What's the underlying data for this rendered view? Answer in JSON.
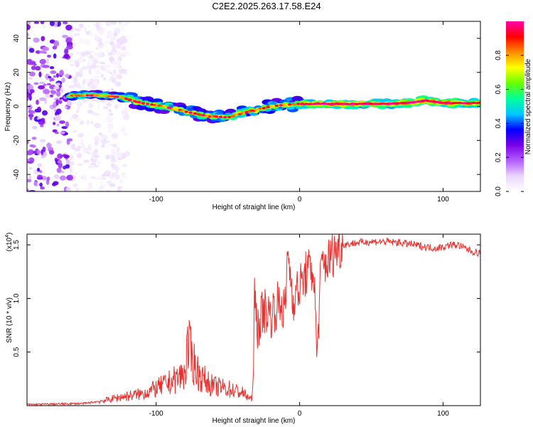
{
  "title": "C2E2.2025.263.17.58.E24",
  "colors": {
    "snr_line": "#e8322f",
    "colormap": [
      "#ffffff",
      "#ead5ff",
      "#b35cff",
      "#7a00e6",
      "#0000ff",
      "#00c8ff",
      "#00ff9a",
      "#66ff00",
      "#ffff00",
      "#ff8c00",
      "#ff0000",
      "#ff00aa"
    ]
  },
  "chart_data": [
    {
      "type": "heatmap",
      "title": "C2E2.2025.263.17.58.E24",
      "xlabel": "Height of straight line (km)",
      "ylabel": "Frequency (Hz)",
      "xlim": [
        -190,
        126
      ],
      "ylim": [
        -50,
        50
      ],
      "xticks": [
        -100,
        0,
        100
      ],
      "yticks": [
        -40,
        -20,
        0,
        20,
        40
      ],
      "colorbar": {
        "label": "Normalized spectral amplitude",
        "range": [
          0,
          1
        ],
        "ticks": [
          "0.0",
          "0.2",
          "0.4",
          "0.6",
          "0.8"
        ]
      },
      "ridge": {
        "x": [
          -160,
          -140,
          -125,
          -110,
          -95,
          -80,
          -65,
          -50,
          -40,
          -30,
          -20,
          -10,
          0,
          20,
          40,
          60,
          75,
          88,
          100,
          126
        ],
        "freq": [
          6.5,
          6.5,
          5.5,
          2,
          0,
          -3,
          -5.5,
          -6.5,
          -4,
          -2,
          0,
          1,
          1.5,
          1.5,
          1.5,
          1.5,
          2,
          3.5,
          2,
          2
        ]
      },
      "noise_region_x": [
        -190,
        -135
      ]
    },
    {
      "type": "line",
      "xlabel": "Height of straight line (km)",
      "ylabel": "SNR (10 * v/v)",
      "yscale_label": "(x10^4)",
      "xlim": [
        -190,
        126
      ],
      "ylim": [
        0,
        1.6
      ],
      "xticks": [
        -100,
        0,
        100
      ],
      "yticks": [
        0.5,
        1.0,
        1.5
      ],
      "series": [
        {
          "x": [
            -190,
            -150,
            -135,
            -125,
            -110,
            -100,
            -90,
            -80,
            -78,
            -70,
            -60,
            -50,
            -40,
            -33,
            -32,
            -30,
            -25,
            -20,
            -15,
            -10,
            -8,
            -5,
            0,
            5,
            10,
            12,
            15,
            20,
            25,
            30,
            40,
            50,
            60,
            70,
            80,
            88,
            95,
            100,
            105,
            110,
            115,
            120,
            126
          ],
          "y": [
            0.01,
            0.02,
            0.05,
            0.08,
            0.11,
            0.16,
            0.22,
            0.3,
            0.55,
            0.28,
            0.18,
            0.16,
            0.12,
            0.05,
            0.8,
            0.72,
            0.9,
            0.85,
            0.95,
            0.9,
            1.45,
            1.0,
            1.1,
            1.25,
            1.25,
            0.45,
            1.3,
            1.35,
            1.45,
            1.5,
            1.52,
            1.53,
            1.53,
            1.52,
            1.5,
            1.48,
            1.47,
            1.48,
            1.5,
            1.5,
            1.47,
            1.44,
            1.42
          ]
        }
      ]
    }
  ]
}
